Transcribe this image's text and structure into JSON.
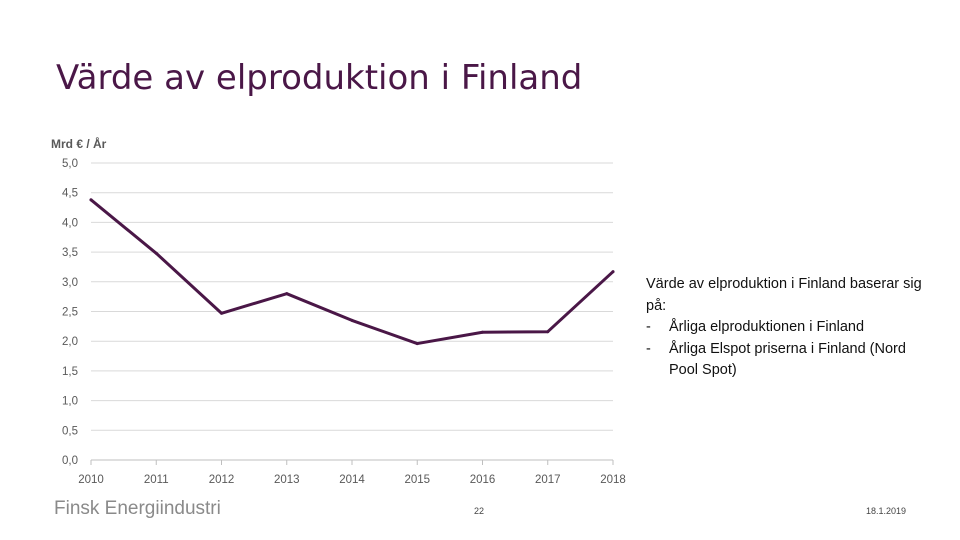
{
  "slide": {
    "title": "Värde av elproduktion i Finland",
    "description": {
      "intro": "Värde av elproduktion i Finland baserar sig på:",
      "bullets": [
        "Årliga elproduktionen i Finland",
        "Årliga Elspot priserna i Finland (Nord Pool Spot)"
      ],
      "bullet_marker": "-"
    },
    "footer": {
      "brand": "Finsk Energiindustri",
      "page_number": "22",
      "date": "18.1.2019"
    }
  },
  "colors": {
    "series": "#4a1747",
    "title": "#4a1747",
    "grid": "#d9d9d9",
    "axis_text": "#595959"
  },
  "chart_data": {
    "type": "line",
    "title": "",
    "ylabel": "Mrd € / År",
    "xlabel": "",
    "categories": [
      "2010",
      "2011",
      "2012",
      "2013",
      "2014",
      "2015",
      "2016",
      "2017",
      "2018"
    ],
    "ylim": [
      0,
      5
    ],
    "ytick_labels": [
      "0,0",
      "0,5",
      "1,0",
      "1,5",
      "2,0",
      "2,5",
      "3,0",
      "3,5",
      "4,0",
      "4,5",
      "5,0"
    ],
    "grid": true,
    "legend": "none",
    "series": [
      {
        "name": "Värde av elproduktion",
        "values": [
          4.38,
          3.48,
          2.47,
          2.8,
          2.35,
          1.96,
          2.15,
          2.16,
          3.17
        ]
      }
    ]
  }
}
